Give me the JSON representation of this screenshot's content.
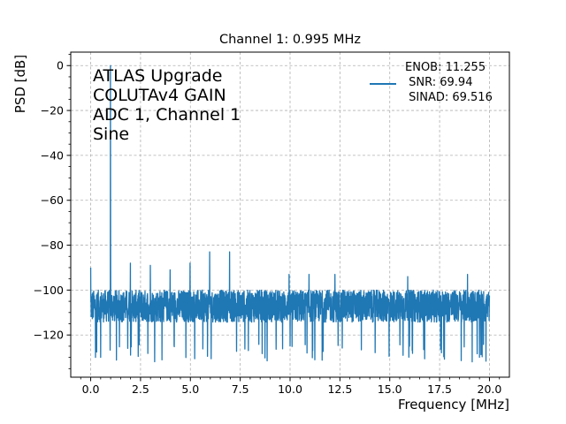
{
  "chart_data": {
    "type": "line",
    "title": "Channel 1: 0.995 MHz",
    "xlabel": "Frequency [MHz]",
    "ylabel": "PSD [dB]",
    "xlim": [
      -1.0,
      21.0
    ],
    "ylim": [
      -138.8,
      6.0
    ],
    "grid": true,
    "x_ticks": [
      0.0,
      2.5,
      5.0,
      7.5,
      10.0,
      12.5,
      15.0,
      17.5,
      20.0
    ],
    "x_tick_labels": [
      "0.0",
      "2.5",
      "5.0",
      "7.5",
      "10.0",
      "12.5",
      "15.0",
      "17.5",
      "20.0"
    ],
    "y_ticks": [
      0,
      -20,
      -40,
      -60,
      -80,
      -100,
      -120
    ],
    "y_tick_labels": [
      "0",
      "−20",
      "−40",
      "−60",
      "−80",
      "−100",
      "−120"
    ],
    "annotation_lines": [
      "ATLAS Upgrade",
      "COLUTAv4 GAIN",
      "ADC 1, Channel 1",
      "Sine"
    ],
    "legend": {
      "placement": "top-right",
      "lines": [
        "ENOB: 11.255",
        " SNR: 69.94",
        " SINAD: 69.516"
      ]
    },
    "series": [
      {
        "color": "#1f77b4",
        "noise_floor": {
          "x_range": [
            0.0,
            20.0
          ],
          "y_range": [
            -122,
            -100
          ],
          "min_dip": -132
        },
        "spikes": [
          {
            "x": 0.0,
            "y": -90
          },
          {
            "x": 0.995,
            "y": 0.0
          },
          {
            "x": 1.0,
            "y": -83
          },
          {
            "x": 1.99,
            "y": -88
          },
          {
            "x": 2.99,
            "y": -89
          },
          {
            "x": 3.98,
            "y": -91
          },
          {
            "x": 4.98,
            "y": -88
          },
          {
            "x": 5.97,
            "y": -83
          },
          {
            "x": 6.97,
            "y": -83
          },
          {
            "x": 9.95,
            "y": -93
          },
          {
            "x": 10.95,
            "y": -93
          },
          {
            "x": 12.25,
            "y": -93
          },
          {
            "x": 15.9,
            "y": -94
          },
          {
            "x": 18.9,
            "y": -93
          }
        ]
      }
    ]
  }
}
